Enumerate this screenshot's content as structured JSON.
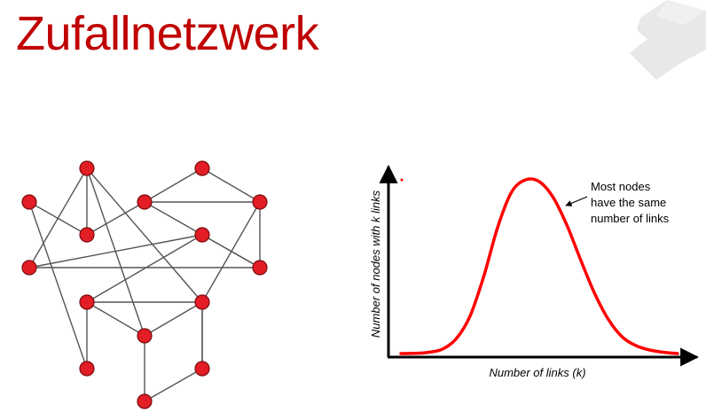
{
  "slide": {
    "title": "Zufallnetzwerk",
    "title_color": "#c00000"
  },
  "colors": {
    "node_fill": "#e21d25",
    "node_stroke": "#7a0a0e",
    "edge": "#555555",
    "curve": "#ff0000",
    "watermark": "#e8e8e8"
  },
  "network": {
    "nodes": [
      "n1",
      "n2",
      "n3",
      "n4",
      "n5",
      "n6",
      "n7",
      "n8",
      "n9",
      "n10",
      "n11",
      "n12",
      "n13",
      "n14",
      "n15",
      "n16"
    ],
    "edges": [
      [
        "n1",
        "n4"
      ],
      [
        "n1",
        "n6"
      ],
      [
        "n1",
        "n9"
      ],
      [
        "n1",
        "n10"
      ],
      [
        "n2",
        "n5"
      ],
      [
        "n2",
        "n6"
      ],
      [
        "n3",
        "n6"
      ],
      [
        "n3",
        "n12"
      ],
      [
        "n4",
        "n5"
      ],
      [
        "n4",
        "n7"
      ],
      [
        "n4",
        "n11"
      ],
      [
        "n5",
        "n8"
      ],
      [
        "n5",
        "n14"
      ],
      [
        "n6",
        "n7"
      ],
      [
        "n6",
        "n9"
      ],
      [
        "n7",
        "n8"
      ],
      [
        "n7",
        "n13"
      ],
      [
        "n8",
        "n12"
      ],
      [
        "n9",
        "n10"
      ],
      [
        "n10",
        "n11"
      ],
      [
        "n10",
        "n16"
      ],
      [
        "n12",
        "n15"
      ],
      [
        "n12",
        "n16"
      ],
      [
        "n13",
        "n15"
      ],
      [
        "n13",
        "n16"
      ],
      [
        "n14",
        "n15"
      ]
    ]
  },
  "chart_data": {
    "type": "line",
    "title": "",
    "xlabel": "Number of links (k)",
    "ylabel": "Number of nodes with k links",
    "x": [
      0,
      0.05,
      0.1,
      0.15,
      0.2,
      0.25,
      0.3,
      0.35,
      0.4,
      0.45,
      0.5,
      0.55,
      0.6,
      0.65,
      0.7,
      0.75,
      0.8,
      0.85,
      0.9,
      0.95,
      1.0
    ],
    "series": [
      {
        "values": [
          0.005,
          0.006,
          0.012,
          0.03,
          0.09,
          0.22,
          0.45,
          0.73,
          0.93,
          1.0,
          0.99,
          0.9,
          0.74,
          0.54,
          0.35,
          0.2,
          0.1,
          0.05,
          0.025,
          0.012,
          0.005
        ]
      }
    ],
    "xlim": [
      0,
      1
    ],
    "ylim": [
      0,
      1.05
    ],
    "grid": false,
    "annotation": {
      "lines": [
        "Most nodes",
        "have the same",
        "number of links"
      ]
    }
  }
}
